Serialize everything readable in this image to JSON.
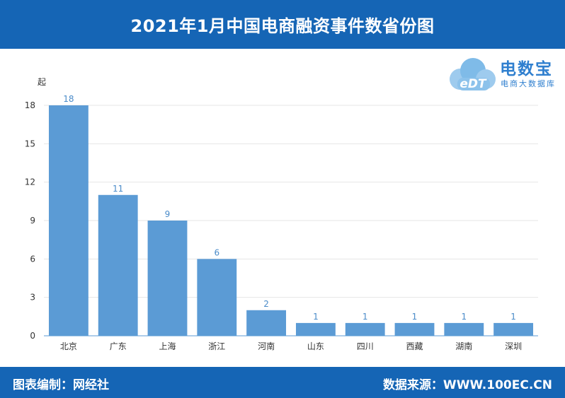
{
  "header": {
    "title": "2021年1月中国电商融资事件数省份图"
  },
  "footer": {
    "left_text": "图表编制：网经社",
    "right_text": "数据来源：WWW.100EC.CN"
  },
  "logo": {
    "brand": "电数宝",
    "tagline": "电商大数据库",
    "mark_text": "eDT"
  },
  "colors": {
    "bar": "#5b9bd5",
    "header_bg": "#1565b5",
    "label": "#4a8bc9"
  },
  "chart_data": {
    "type": "bar",
    "title": "2021年1月中国电商融资事件数省份图",
    "ylabel": "起",
    "xlabel": "",
    "categories": [
      "北京",
      "广东",
      "上海",
      "浙江",
      "河南",
      "山东",
      "四川",
      "西藏",
      "湖南",
      "深圳"
    ],
    "values": [
      18,
      11,
      9,
      6,
      2,
      1,
      1,
      1,
      1,
      1
    ],
    "ylim": [
      0,
      18
    ],
    "yticks": [
      0,
      3,
      6,
      9,
      12,
      15,
      18
    ],
    "grid": true,
    "legend": "none"
  }
}
